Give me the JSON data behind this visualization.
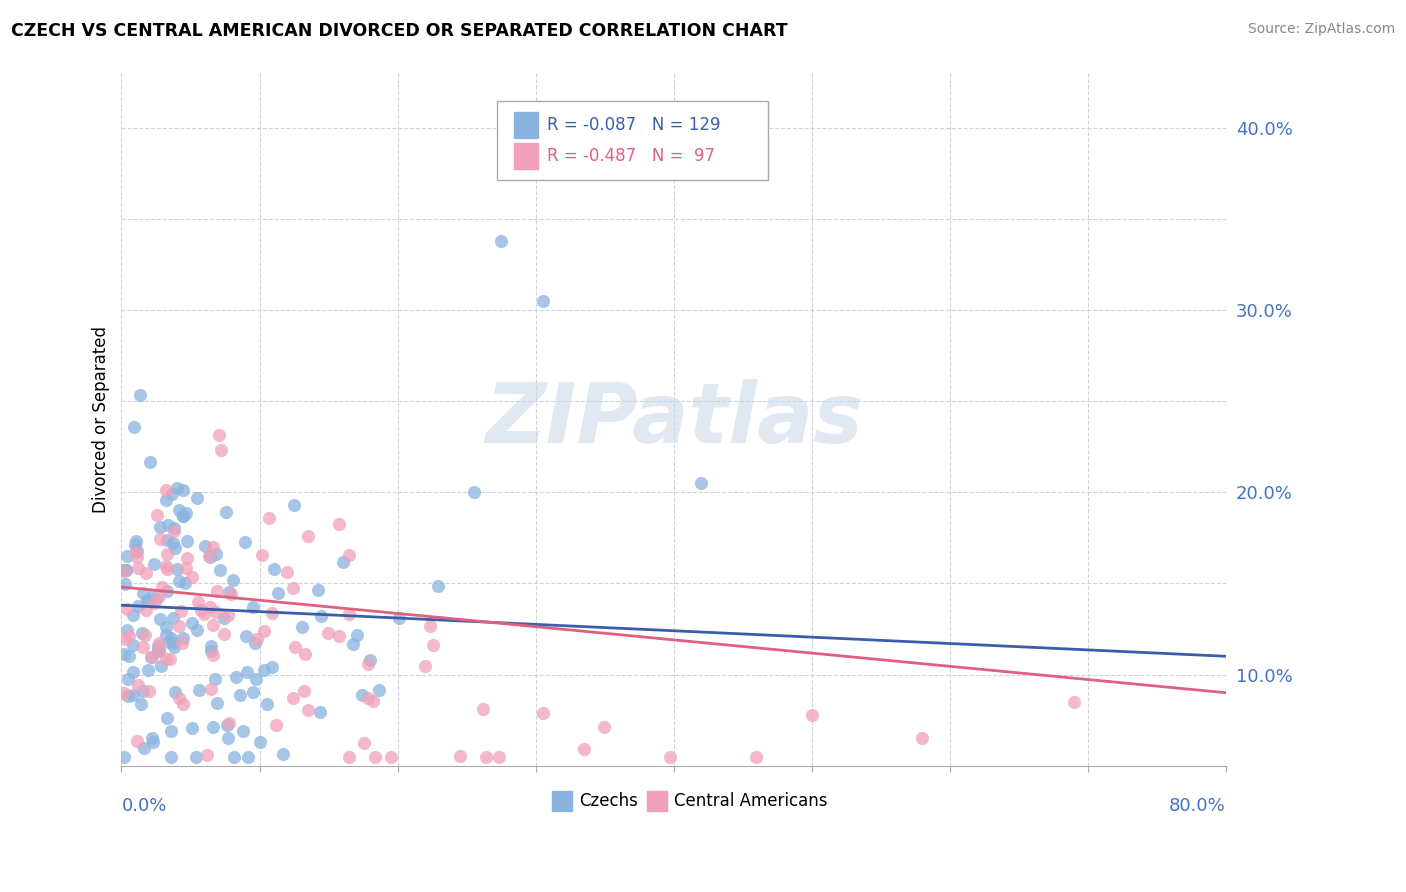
{
  "title": "CZECH VS CENTRAL AMERICAN DIVORCED OR SEPARATED CORRELATION CHART",
  "source": "Source: ZipAtlas.com",
  "ylabel": "Divorced or Separated",
  "color_czech": "#8ab4e0",
  "color_central": "#f0a0b8",
  "color_czech_line": "#3a5faa",
  "color_central_line": "#e06080",
  "color_axis_label": "#4472c4",
  "background_color": "#ffffff",
  "watermark_text": "ZIPatlas",
  "legend_r1": "-0.087",
  "legend_n1": "129",
  "legend_r2": "-0.487",
  "legend_n2": "97",
  "xlim": [
    0.0,
    0.8
  ],
  "ylim": [
    0.05,
    0.43
  ],
  "yticks": [
    0.1,
    0.15,
    0.2,
    0.25,
    0.3,
    0.35,
    0.4
  ],
  "ytick_labels": [
    "10.0%",
    "",
    "20.0%",
    "",
    "30.0%",
    "",
    "40.0%"
  ],
  "czech_line_start_y": 0.138,
  "czech_line_end_y": 0.11,
  "central_line_start_y": 0.148,
  "central_line_end_y": 0.09
}
